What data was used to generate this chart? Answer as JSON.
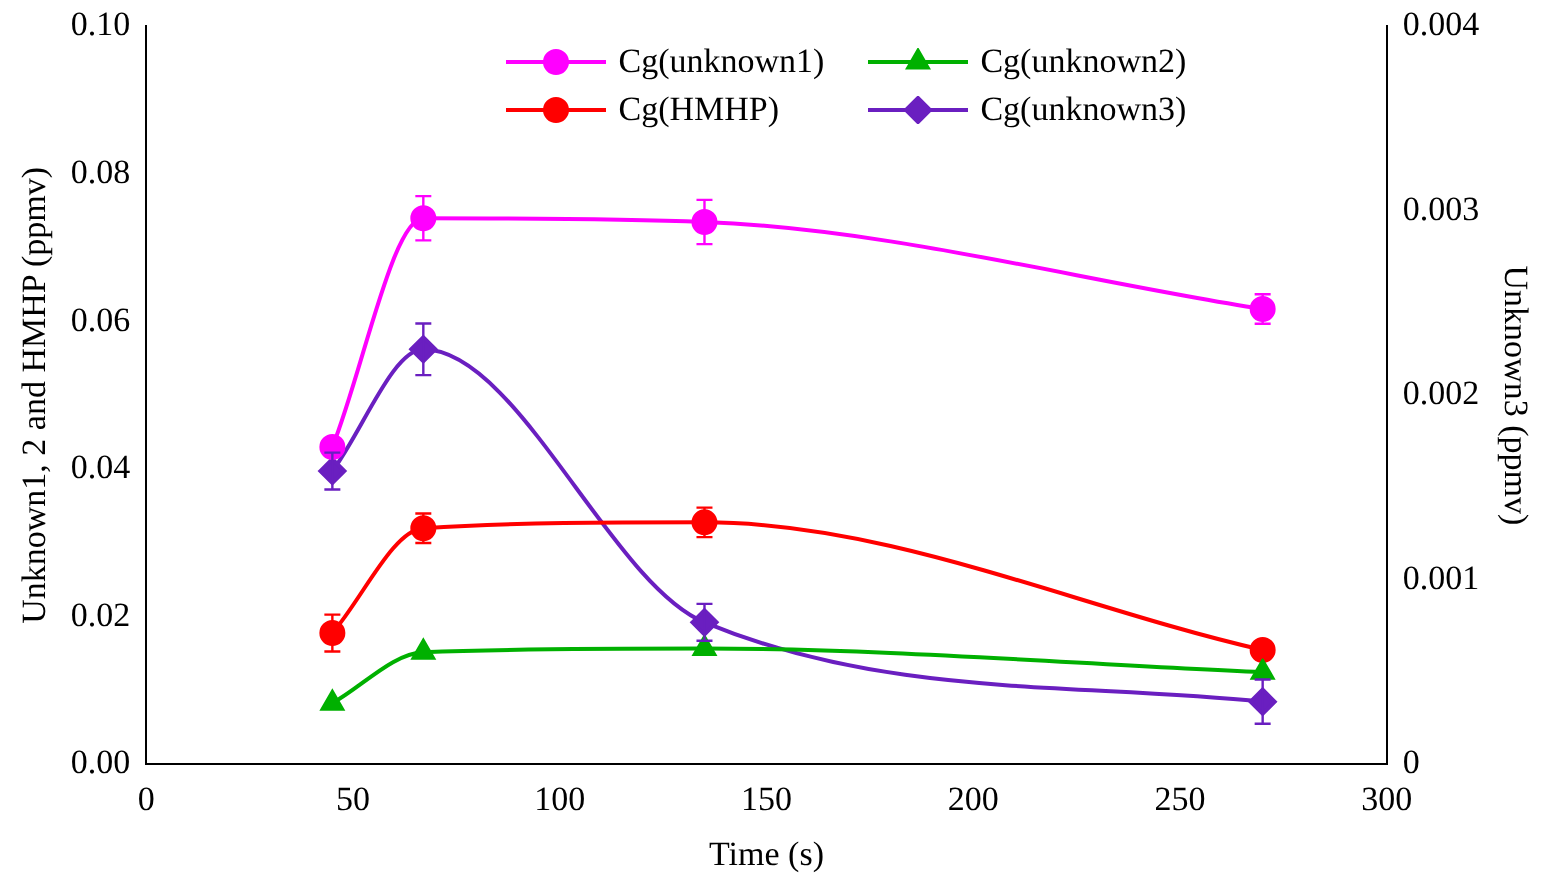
{
  "chart_data": {
    "type": "line",
    "xlabel": "Time (s)",
    "ylabel": "Unknown1, 2 and HMHP (ppmv)",
    "y2label": "Unknown3 (ppmv)",
    "xlim": [
      0,
      300
    ],
    "xticks": [
      0,
      50,
      100,
      150,
      200,
      250,
      300
    ],
    "ylim": [
      0,
      0.1
    ],
    "yticks": [
      {
        "value": 0,
        "label": "0.00"
      },
      {
        "value": 0.02,
        "label": "0.02"
      },
      {
        "value": 0.04,
        "label": "0.04"
      },
      {
        "value": 0.06,
        "label": "0.06"
      },
      {
        "value": 0.08,
        "label": "0.08"
      },
      {
        "value": 0.1,
        "label": "0.10"
      }
    ],
    "y2lim": [
      0,
      0.004
    ],
    "y2ticks": [
      0,
      0.001,
      0.002,
      0.003,
      0.004
    ],
    "grid": false,
    "legend": "top",
    "line_style": "solid",
    "series": [
      {
        "name": "Cg(unknown1)",
        "color": "#ff00ff",
        "marker": "circle",
        "x": [
          45,
          67,
          135,
          270
        ],
        "values": [
          0.043,
          0.074,
          0.0735,
          0.0617
        ],
        "errors": [
          null,
          0.003,
          0.003,
          0.002
        ]
      },
      {
        "name": "Cg(unknown2)",
        "color": "#00b000",
        "marker": "triangle",
        "x": [
          45,
          67,
          135,
          270
        ],
        "values": [
          0.0083,
          0.0152,
          0.0157,
          0.0125
        ]
      },
      {
        "name": "Cg(HMHP)",
        "color": "#ff0000",
        "marker": "circle",
        "x": [
          45,
          67,
          135,
          270
        ],
        "values": [
          0.0178,
          0.032,
          0.0328,
          0.0155
        ],
        "errors": [
          0.0025,
          0.002,
          0.002,
          0.001
        ]
      },
      {
        "name": "Cg(unknown3)",
        "color": "#6a1fc0",
        "marker": "diamond",
        "axis": "y2",
        "x": [
          45,
          67,
          135,
          270
        ],
        "values": [
          0.00159,
          0.00225,
          0.00077,
          0.00034
        ],
        "errors": [
          0.0001,
          0.00014,
          0.0001,
          0.00012
        ]
      }
    ]
  }
}
